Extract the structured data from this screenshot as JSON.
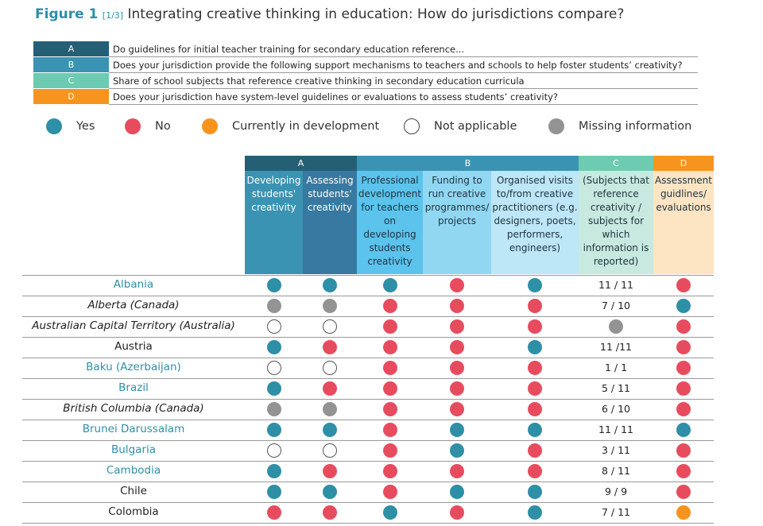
{
  "header": {
    "figure_label": "Figure 1",
    "part_label": "[1/3]",
    "title": "Integrating creative thinking in education: How do jurisdictions compare?"
  },
  "key": [
    {
      "letter": "A",
      "color": "#245f75",
      "text": "Do  guidelines for initial teacher training for secondary education  reference..."
    },
    {
      "letter": "B",
      "color": "#3a93b2",
      "text": "Does your jurisdiction provide the following support mechanisms to teachers and schools to help foster students’ creativity?"
    },
    {
      "letter": "C",
      "color": "#6ccbb0",
      "text": "Share of school subjects that reference creative thinking in secondary education curricula"
    },
    {
      "letter": "D",
      "color": "#f7941d",
      "text": "Does your jurisdiction have system-level guidelines or evaluations to assess students’ creativity?"
    }
  ],
  "status_legend": [
    {
      "key": "Y",
      "label": "Yes",
      "color": "#2e8fa7"
    },
    {
      "key": "N",
      "label": "No",
      "color": "#e74c5e"
    },
    {
      "key": "D",
      "label": "Currently in development",
      "color": "#f7941d"
    },
    {
      "key": "NA",
      "label": "Not applicable",
      "color": "#ffffff"
    },
    {
      "key": "M",
      "label": "Missing information",
      "color": "#939393"
    }
  ],
  "groups": [
    {
      "letter": "A",
      "color": "#245f75",
      "text_color": "#ffffff"
    },
    {
      "letter": "B",
      "color": "#3a93b2",
      "text_color": "#ffffff"
    },
    {
      "letter": "C",
      "color": "#6ccbb0",
      "text_color": "#ffffff"
    },
    {
      "letter": "D",
      "color": "#f7941d",
      "text_color": "#ffffff"
    }
  ],
  "columns": [
    {
      "group": "A",
      "label": "Developing students' creativity",
      "bg": "#3a93b2",
      "fg": "#ffffff"
    },
    {
      "group": "A",
      "label": "Assessing students' creativity",
      "bg": "#3779a0",
      "fg": "#ffffff"
    },
    {
      "group": "B",
      "label": "Professional development for teachers on developing students creativity",
      "bg": "#5bc3ec",
      "fg": "#1f3340"
    },
    {
      "group": "B",
      "label": "Funding to run creative programmes/ projects",
      "bg": "#92d7f2",
      "fg": "#1f3340"
    },
    {
      "group": "B",
      "label": "Organised visits to/from creative practitioners (e.g. designers, poets, performers, engineers)",
      "bg": "#bde6f7",
      "fg": "#1f3340"
    },
    {
      "group": "C",
      "label": "(Subjects that reference creativity / subjects for which information is reported)",
      "bg": "#c8e9df",
      "fg": "#1f3340"
    },
    {
      "group": "D",
      "label": "Assessment guidlines/ evaluations",
      "bg": "#fde4c3",
      "fg": "#1f3340"
    }
  ],
  "chart_data": {
    "type": "table",
    "title": "Integrating creative thinking in education: How do jurisdictions compare?",
    "rows": [
      {
        "name": "Albania",
        "style": "link",
        "A1": "Y",
        "A2": "Y",
        "B1": "Y",
        "B2": "N",
        "B3": "Y",
        "C": "11 / 11",
        "D": "N"
      },
      {
        "name": "Alberta (Canada)",
        "style": "italic",
        "A1": "M",
        "A2": "M",
        "B1": "N",
        "B2": "N",
        "B3": "N",
        "C": "7 / 10",
        "D": "Y"
      },
      {
        "name": "Australian Capital Territory (Australia)",
        "style": "italic",
        "A1": "NA",
        "A2": "NA",
        "B1": "N",
        "B2": "N",
        "B3": "N",
        "C": "M",
        "D": "N"
      },
      {
        "name": "Austria",
        "style": "plain",
        "A1": "Y",
        "A2": "N",
        "B1": "N",
        "B2": "N",
        "B3": "Y",
        "C": "11 /11",
        "D": "N"
      },
      {
        "name": "Baku (Azerbaijan)",
        "style": "link",
        "A1": "NA",
        "A2": "NA",
        "B1": "N",
        "B2": "N",
        "B3": "N",
        "C": "1 / 1",
        "D": "N"
      },
      {
        "name": "Brazil",
        "style": "link",
        "A1": "Y",
        "A2": "N",
        "B1": "N",
        "B2": "N",
        "B3": "N",
        "C": "5 / 11",
        "D": "N"
      },
      {
        "name": "British Columbia (Canada)",
        "style": "italic",
        "A1": "M",
        "A2": "M",
        "B1": "N",
        "B2": "N",
        "B3": "N",
        "C": "6 / 10",
        "D": "N"
      },
      {
        "name": "Brunei Darussalam",
        "style": "link",
        "A1": "Y",
        "A2": "Y",
        "B1": "N",
        "B2": "Y",
        "B3": "Y",
        "C": "11 / 11",
        "D": "Y"
      },
      {
        "name": "Bulgaria",
        "style": "link",
        "A1": "NA",
        "A2": "NA",
        "B1": "N",
        "B2": "Y",
        "B3": "N",
        "C": "3 / 11",
        "D": "N"
      },
      {
        "name": "Cambodia",
        "style": "link",
        "A1": "Y",
        "A2": "N",
        "B1": "N",
        "B2": "N",
        "B3": "N",
        "C": "8 / 11",
        "D": "N"
      },
      {
        "name": "Chile",
        "style": "plain",
        "A1": "Y",
        "A2": "Y",
        "B1": "N",
        "B2": "Y",
        "B3": "Y",
        "C": "9 / 9",
        "D": "N"
      },
      {
        "name": "Colombia",
        "style": "plain",
        "A1": "N",
        "A2": "N",
        "B1": "Y",
        "B2": "N",
        "B3": "Y",
        "C": "7 / 11",
        "D": "D"
      }
    ]
  }
}
